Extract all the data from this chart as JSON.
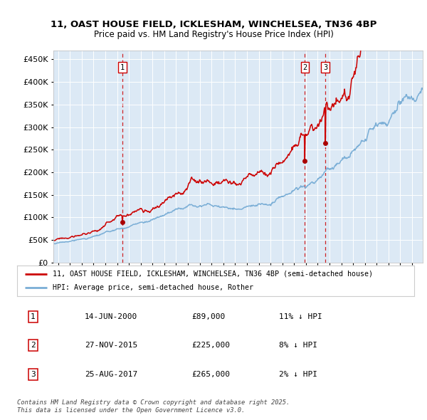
{
  "title_line1": "11, OAST HOUSE FIELD, ICKLESHAM, WINCHELSEA, TN36 4BP",
  "title_line2": "Price paid vs. HM Land Registry's House Price Index (HPI)",
  "background_color": "#dce9f5",
  "fig_bg_color": "#ffffff",
  "ylim": [
    0,
    470000
  ],
  "yticks": [
    0,
    50000,
    100000,
    150000,
    200000,
    250000,
    300000,
    350000,
    400000,
    450000
  ],
  "legend_label_red": "11, OAST HOUSE FIELD, ICKLESHAM, WINCHELSEA, TN36 4BP (semi-detached house)",
  "legend_label_blue": "HPI: Average price, semi-detached house, Rother",
  "sale_t": [
    2000.458,
    2015.906,
    2017.644
  ],
  "sale_prices": [
    89000,
    225000,
    265000
  ],
  "sale_labels": [
    "1",
    "2",
    "3"
  ],
  "table_rows": [
    [
      "1",
      "14-JUN-2000",
      "£89,000",
      "11% ↓ HPI"
    ],
    [
      "2",
      "27-NOV-2015",
      "£225,000",
      "8% ↓ HPI"
    ],
    [
      "3",
      "25-AUG-2017",
      "£265,000",
      "2% ↓ HPI"
    ]
  ],
  "footer_text": "Contains HM Land Registry data © Crown copyright and database right 2025.\nThis data is licensed under the Open Government Licence v3.0.",
  "red_color": "#cc0000",
  "blue_color": "#7aaed6",
  "xlim_start": 1994.6,
  "xlim_end": 2025.9,
  "xtick_start": 1995,
  "xtick_end": 2026
}
